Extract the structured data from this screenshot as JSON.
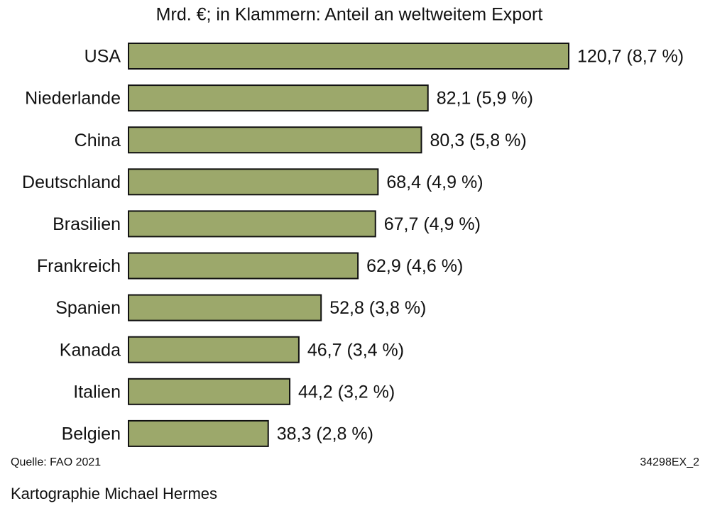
{
  "chart_data": {
    "type": "bar",
    "orientation": "horizontal",
    "title": "Mrd. €; in Klammern: Anteil an weltweitem Export",
    "categories": [
      "USA",
      "Niederlande",
      "China",
      "Deutschland",
      "Brasilien",
      "Frankreich",
      "Spanien",
      "Kanada",
      "Italien",
      "Belgien"
    ],
    "values": [
      120.7,
      82.1,
      80.3,
      68.4,
      67.7,
      62.9,
      52.8,
      46.7,
      44.2,
      38.3
    ],
    "value_labels": [
      "120,7 (8,7 %)",
      "82,1 (5,9 %)",
      "80,3 (5,8 %)",
      "68,4 (4,9 %)",
      "67,7 (4,9 %)",
      "62,9 (4,6 %)",
      "52,8 (3,8 %)",
      "46,7 (3,4 %)",
      "44,2 (3,2 %)",
      "38,3 (2,8 %)"
    ],
    "color": "#9ca86b",
    "source": "Quelle: FAO 2021",
    "code": "34298EX_2",
    "credit": "Kartographie Michael Hermes"
  }
}
